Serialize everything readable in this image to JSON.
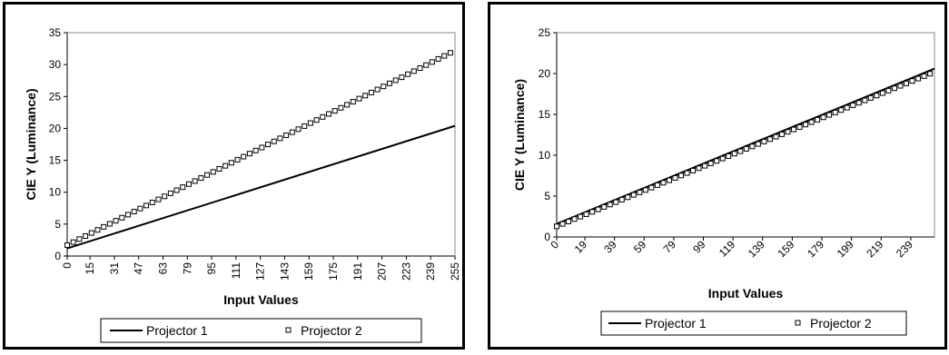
{
  "chart_data": [
    {
      "type": "line",
      "xlabel": "Input Values",
      "ylabel": "CIE Y (Luminance)",
      "ylim": [
        0,
        35
      ],
      "yticks": [
        0,
        5,
        10,
        15,
        20,
        25,
        30,
        35
      ],
      "xlim": [
        0,
        255
      ],
      "xticks": [
        0,
        15,
        31,
        47,
        63,
        79,
        95,
        111,
        127,
        143,
        159,
        175,
        191,
        207,
        223,
        239,
        255
      ],
      "xtick_rotation": "vertical",
      "legend": "bottom",
      "series": [
        {
          "name": "Projector 1",
          "style": "line",
          "x": [
            0,
            255
          ],
          "y": [
            1.2,
            20.4
          ]
        },
        {
          "name": "Projector 2",
          "style": "square-markers",
          "x": [
            0,
            255
          ],
          "y": [
            1.7,
            32.2
          ]
        }
      ]
    },
    {
      "type": "line",
      "xlabel": "Input Values",
      "ylabel": "CIE Y (Luminance)",
      "ylim": [
        0,
        25
      ],
      "yticks": [
        0,
        5,
        10,
        15,
        20,
        25
      ],
      "xlim": [
        0,
        255
      ],
      "xticks": [
        "0",
        "19",
        "39",
        "59",
        "79",
        "99",
        "119",
        "139",
        "159",
        "179",
        "199",
        "219",
        "239"
      ],
      "xtick_rotation": "diagonal",
      "legend": "bottom",
      "series": [
        {
          "name": "Projector 1",
          "style": "line",
          "x": [
            0,
            255
          ],
          "y": [
            1.6,
            20.6
          ]
        },
        {
          "name": "Projector 2",
          "style": "square-markers",
          "x": [
            0,
            255
          ],
          "y": [
            1.3,
            20.2
          ]
        }
      ]
    }
  ]
}
